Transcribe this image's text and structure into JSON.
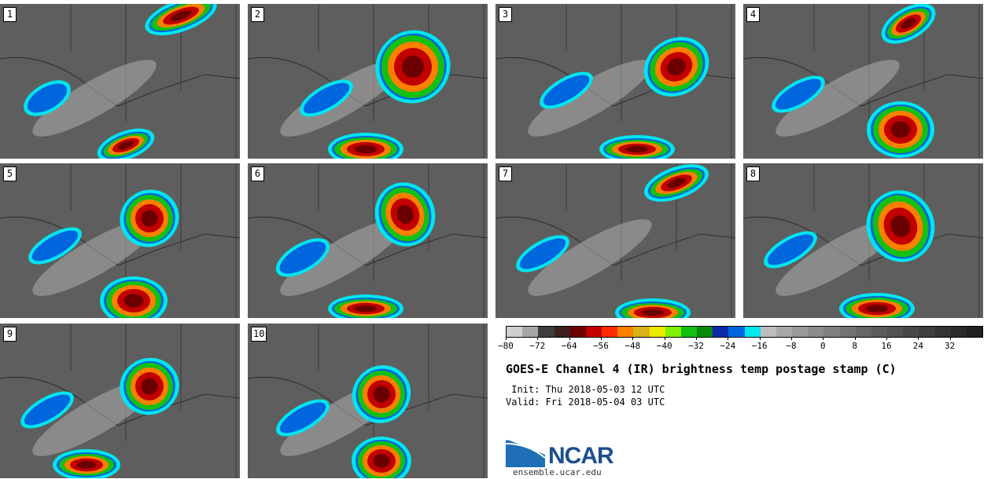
{
  "panels": [
    {
      "label": "1"
    },
    {
      "label": "2"
    },
    {
      "label": "3"
    },
    {
      "label": "4"
    },
    {
      "label": "5"
    },
    {
      "label": "6"
    },
    {
      "label": "7"
    },
    {
      "label": "8"
    },
    {
      "label": "9"
    },
    {
      "label": "10"
    }
  ],
  "colorbar": {
    "colors": [
      "#cfcfcf",
      "#a6a6a6",
      "#3d3d3d",
      "#3d1f1f",
      "#6b0000",
      "#c20000",
      "#ff2a00",
      "#ff7f00",
      "#d9b21a",
      "#eaea00",
      "#7ef000",
      "#13c013",
      "#0a8a0a",
      "#0a2aa8",
      "#0066dd",
      "#00e6f0",
      "#bdbdbd",
      "#a8a8a8",
      "#999999",
      "#8c8c8c",
      "#808080",
      "#737373",
      "#676767",
      "#5c5c5c",
      "#525252",
      "#484848",
      "#3e3e3e",
      "#333333",
      "#2a2a2a",
      "#202020"
    ],
    "ticks": [
      "−80",
      "−72",
      "−64",
      "−56",
      "−48",
      "−40",
      "−32",
      "−24",
      "−16",
      "−8",
      "0",
      "8",
      "16",
      "24",
      "32"
    ]
  },
  "title": "GOES-E Channel 4 (IR) brightness temp postage stamp (C)",
  "init": " Init: Thu 2018-05-03 12 UTC",
  "valid": "Valid: Fri 2018-05-04 03 UTC",
  "logo": {
    "text": "NCAR",
    "color": "#1e4f8f"
  },
  "site": "ensemble.ucar.edu"
}
